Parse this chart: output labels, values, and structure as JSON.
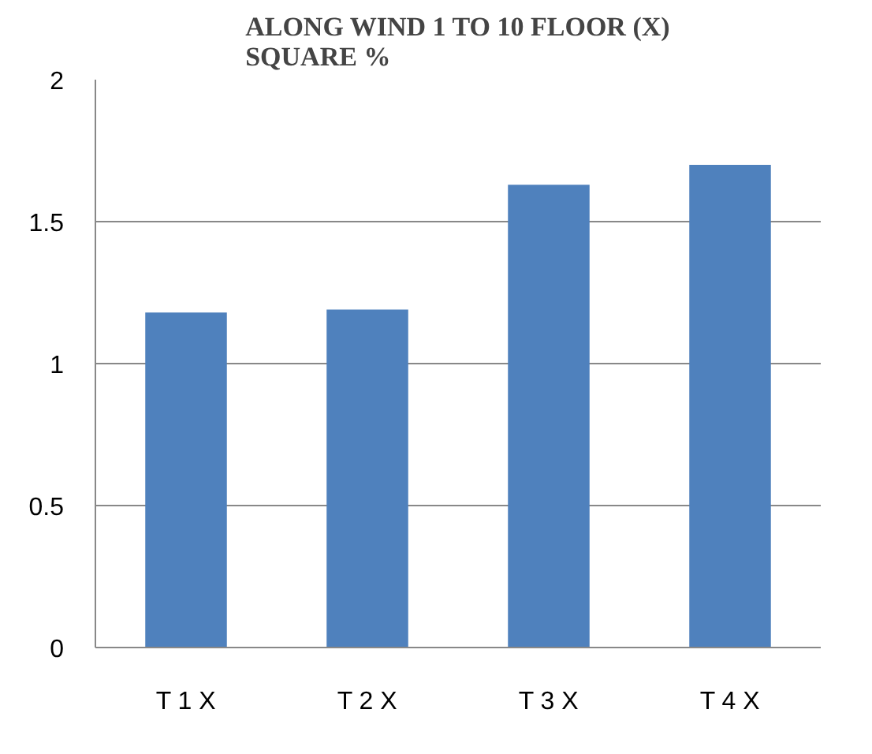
{
  "chart_data": {
    "type": "bar",
    "title": "ALONG WIND 1 TO 10 FLOOR (X)\nSQUARE %",
    "categories": [
      "T 1 X",
      "T 2 X",
      "T 3 X",
      "T 4 X"
    ],
    "values": [
      1.18,
      1.19,
      1.63,
      1.7
    ],
    "color": "#4f81bd",
    "ylim": [
      0,
      2
    ],
    "yticks": [
      0,
      {
        "value": 0.5,
        "label": "0.5"
      },
      1,
      {
        "value": 1.5,
        "label": "1.5"
      },
      2
    ],
    "grid": "y"
  }
}
